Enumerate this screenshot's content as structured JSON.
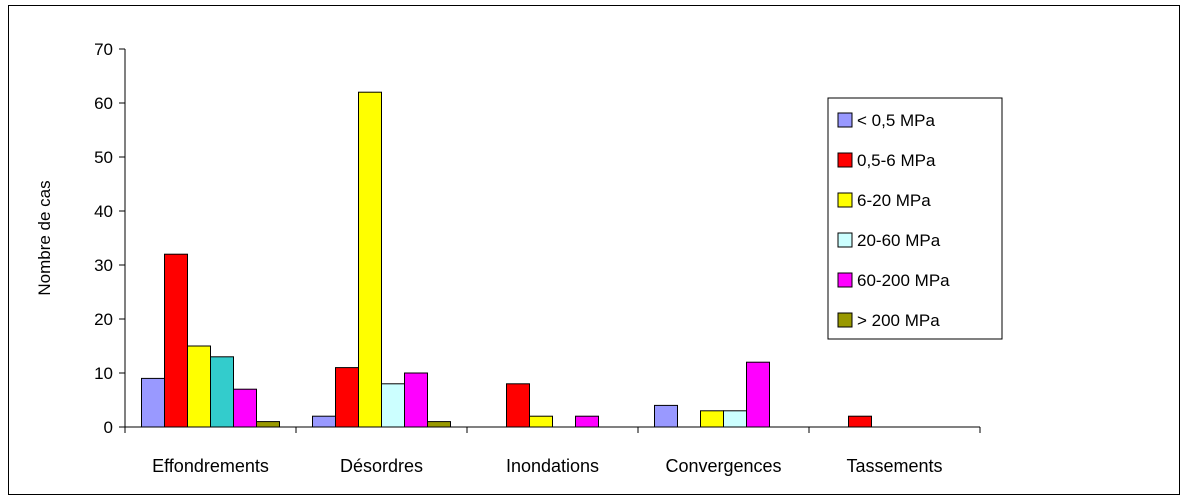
{
  "chart_data": {
    "type": "bar",
    "title": "",
    "xlabel": "",
    "ylabel": "Nombre de cas",
    "ylim": [
      0,
      70
    ],
    "yticks": [
      0,
      10,
      20,
      30,
      40,
      50,
      60,
      70
    ],
    "grid": false,
    "legend_position": "right",
    "categories": [
      "Effondrements",
      "Désordres",
      "Inondations",
      "Convergences",
      "Tassements"
    ],
    "series": [
      {
        "name": "< 0,5 MPa",
        "color": "#9999ff",
        "values": [
          9,
          2,
          0,
          4,
          0
        ]
      },
      {
        "name": "0,5-6 MPa",
        "color": "#ff0000",
        "values": [
          32,
          11,
          8,
          0,
          2
        ]
      },
      {
        "name": "6-20 MPa",
        "color": "#ffff00",
        "values": [
          15,
          62,
          2,
          3,
          0
        ]
      },
      {
        "name": "20-60 MPa",
        "color": "#ccffff",
        "values": [
          13,
          8,
          0,
          3,
          0
        ]
      },
      {
        "name": "60-200 MPa",
        "color": "#ff00ff",
        "values": [
          7,
          10,
          2,
          12,
          0
        ]
      },
      {
        "name": "> 200 MPa",
        "color": "#999900",
        "values": [
          1,
          1,
          0,
          0,
          0
        ]
      }
    ],
    "bar_color_overrides": [
      {
        "series": 3,
        "category": 0,
        "color": "#33cccc"
      }
    ]
  }
}
